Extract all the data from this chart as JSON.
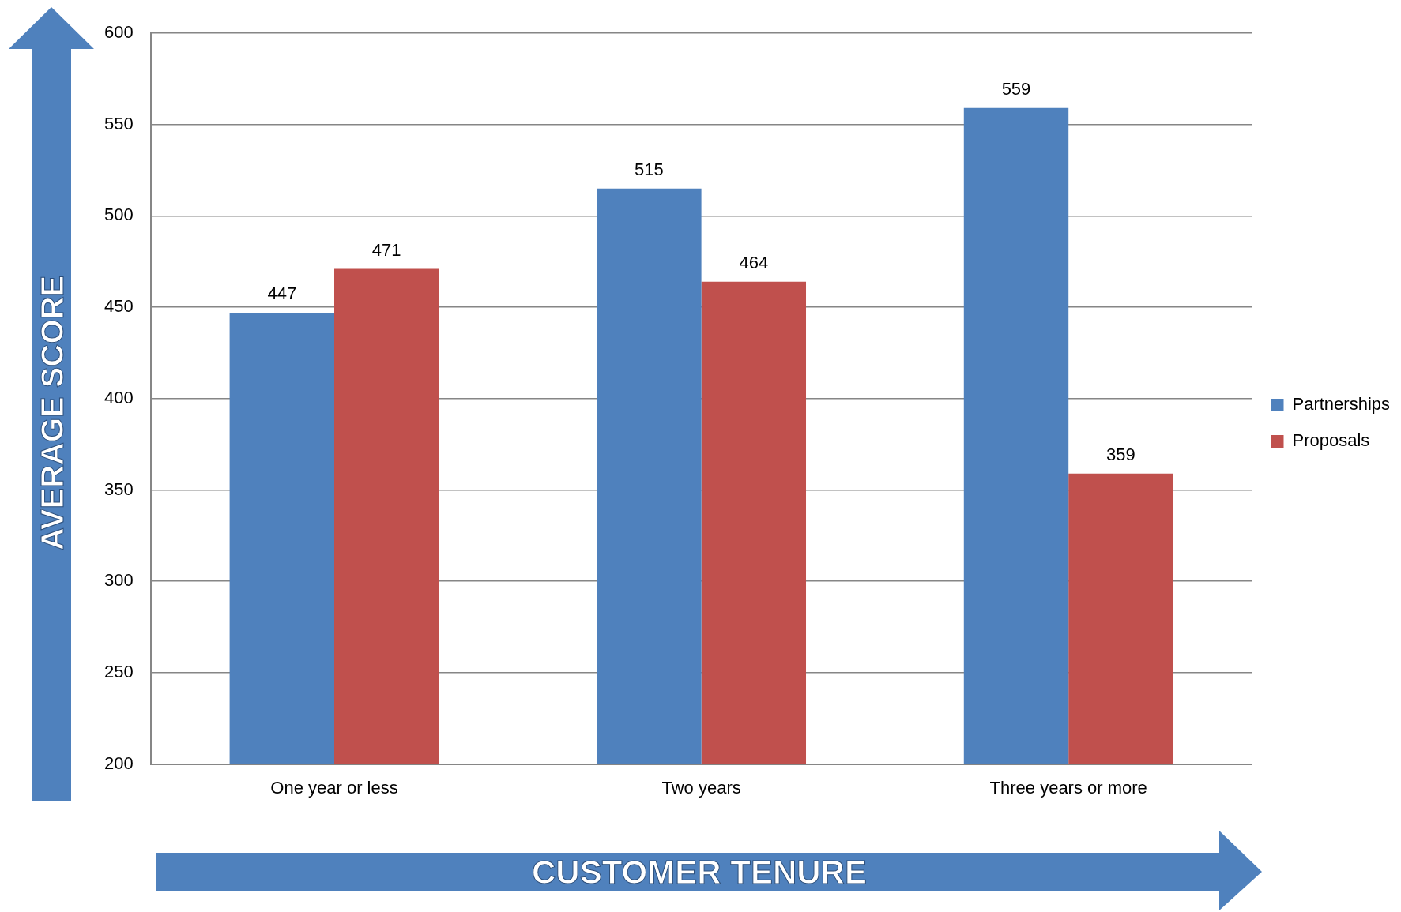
{
  "chart_data": {
    "type": "bar",
    "xlabel": "CUSTOMER TENURE",
    "ylabel": "AVERAGE SCORE",
    "categories": [
      "One year or less",
      "Two years",
      "Three years or more"
    ],
    "series": [
      {
        "name": "Partnerships",
        "color": "#4f81bd",
        "values": [
          447,
          515,
          559
        ]
      },
      {
        "name": "Proposals",
        "color": "#c0504d",
        "values": [
          471,
          464,
          359
        ]
      }
    ],
    "ylim": [
      200,
      600
    ],
    "yticks": [
      200,
      250,
      300,
      350,
      400,
      450,
      500,
      550,
      600
    ],
    "grid": "y",
    "legend": "right",
    "data_labels": true
  }
}
